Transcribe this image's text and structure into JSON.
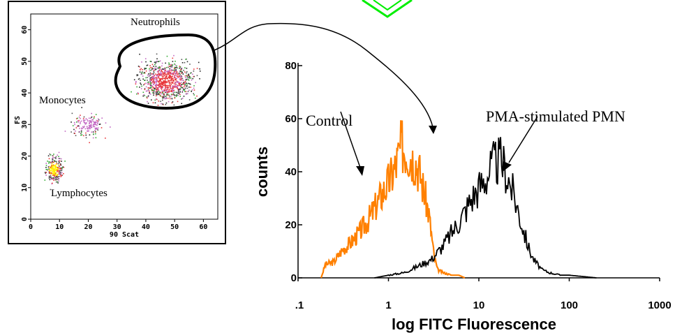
{
  "chart_data": [
    {
      "type": "scatter",
      "ylabel": "FS",
      "xlabel": "90 Scat",
      "x_ticks": [
        "0",
        "10",
        "20",
        "30",
        "40",
        "50",
        "60"
      ],
      "y_ticks": [
        "0",
        "10",
        "20",
        "30",
        "40",
        "50",
        "60"
      ],
      "xlim": [
        0,
        65
      ],
      "ylim": [
        0,
        65
      ],
      "grid": false,
      "populations": [
        {
          "name": "Neutrophils",
          "center": [
            47,
            44
          ],
          "spread": [
            9,
            6
          ],
          "color": "#e8383b",
          "gated": true
        },
        {
          "name": "Monocytes",
          "center": [
            20,
            30
          ],
          "spread": [
            6,
            4
          ],
          "color": "#c266c2",
          "gated": false
        },
        {
          "name": "Lymphocytes",
          "center": [
            8,
            16
          ],
          "spread": [
            3,
            4
          ],
          "color": "#ffee00",
          "gated": false
        }
      ]
    },
    {
      "type": "line",
      "ylabel": "counts",
      "xlabel": "log FITC Fluorescence",
      "x_scale": "log",
      "x_ticks": [
        ".1",
        "1",
        "10",
        "100",
        "1000"
      ],
      "y_ticks": [
        "0",
        "20",
        "40",
        "60",
        "80"
      ],
      "xlim": [
        0.1,
        1000
      ],
      "ylim": [
        0,
        80
      ],
      "grid": false,
      "series": [
        {
          "name": "Control",
          "color": "#ff8000",
          "x": [
            0.18,
            0.2,
            0.25,
            0.3,
            0.4,
            0.5,
            0.6,
            0.7,
            0.8,
            1.0,
            1.2,
            1.4,
            1.6,
            1.8,
            2.0,
            2.2,
            2.5,
            2.8,
            3.0,
            3.2,
            3.5,
            4.0,
            5.0,
            6.0,
            7.0
          ],
          "y": [
            0,
            5,
            6,
            10,
            14,
            18,
            22,
            26,
            30,
            36,
            42,
            50,
            48,
            46,
            44,
            40,
            32,
            24,
            16,
            8,
            3,
            2,
            1,
            1,
            0
          ]
        },
        {
          "name": "PMA-stimulated PMN",
          "color": "#000000",
          "x": [
            0.7,
            1.0,
            1.5,
            2.0,
            3.0,
            4.0,
            5.0,
            6.0,
            7.0,
            8.0,
            10,
            12,
            14,
            16,
            18,
            20,
            25,
            30,
            35,
            40,
            50,
            60,
            80,
            100,
            200
          ],
          "y": [
            0,
            1,
            2,
            4,
            7,
            12,
            17,
            21,
            25,
            29,
            34,
            38,
            42,
            44,
            44,
            40,
            30,
            20,
            12,
            7,
            3,
            2,
            1,
            1,
            0
          ]
        }
      ],
      "labels": [
        "Control",
        "PMA-stimulated PMN"
      ]
    }
  ]
}
